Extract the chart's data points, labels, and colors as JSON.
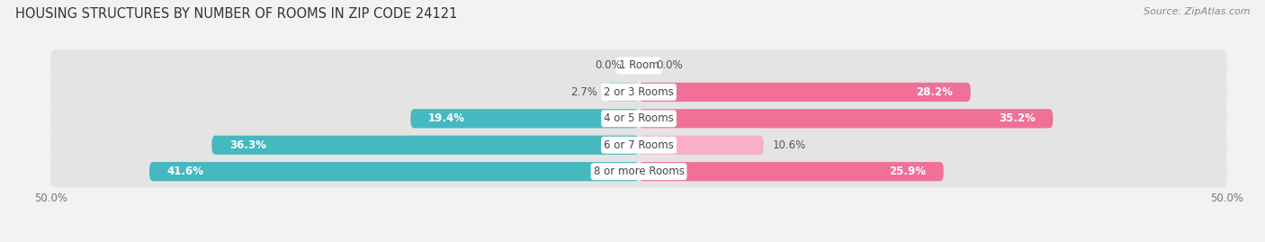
{
  "title": "HOUSING STRUCTURES BY NUMBER OF ROOMS IN ZIP CODE 24121",
  "source": "Source: ZipAtlas.com",
  "categories": [
    "1 Room",
    "2 or 3 Rooms",
    "4 or 5 Rooms",
    "6 or 7 Rooms",
    "8 or more Rooms"
  ],
  "owner_values": [
    0.0,
    2.7,
    19.4,
    36.3,
    41.6
  ],
  "renter_values": [
    0.0,
    28.2,
    35.2,
    10.6,
    25.9
  ],
  "owner_color": "#46B8BF",
  "renter_color": "#F07098",
  "owner_color_light": "#A0D8DC",
  "renter_color_light": "#F8B0C8",
  "background_color": "#F2F2F2",
  "bar_bg_color": "#E4E4E4",
  "row_bg_color": "#EBEBEB",
  "xlim": [
    -50,
    50
  ],
  "title_fontsize": 10.5,
  "source_fontsize": 8,
  "value_fontsize": 8.5,
  "cat_fontsize": 8.5,
  "tick_fontsize": 8.5,
  "bar_height": 0.72
}
